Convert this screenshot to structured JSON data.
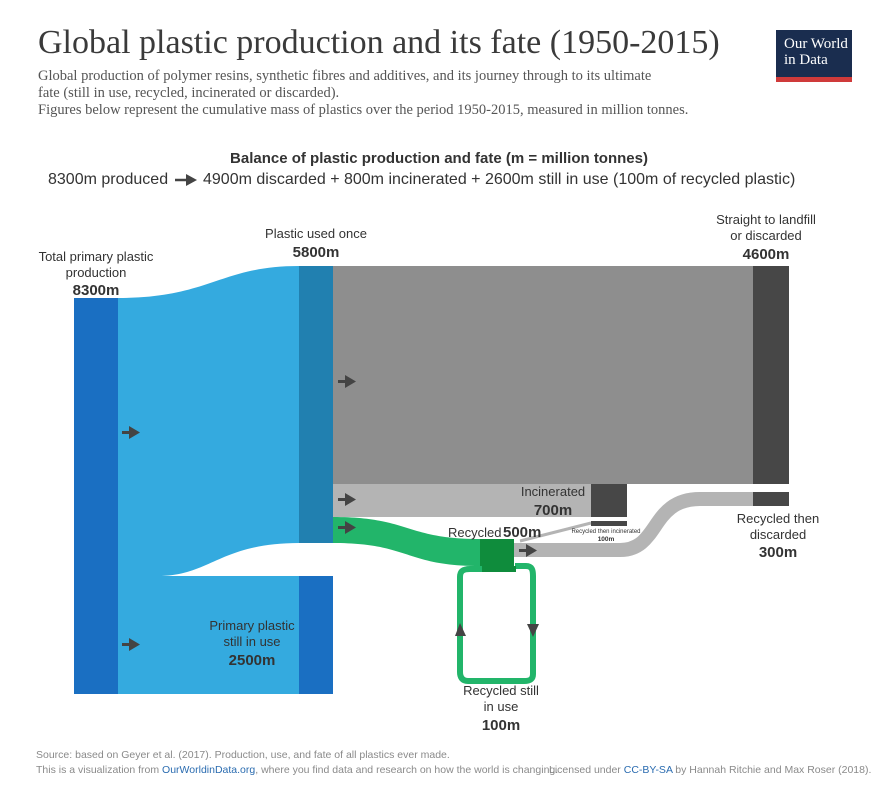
{
  "header": {
    "title": "Global plastic production and its fate (1950-2015)",
    "subtitle_lines": [
      "Global production of polymer resins, synthetic fibres and additives, and its journey through to its ultimate",
      "fate (still in use, recycled, incinerated or discarded).",
      "Figures below represent the cumulative mass of plastics over the period 1950-2015, measured in million tonnes."
    ]
  },
  "logo": {
    "line1": "Our World",
    "line2": "in Data"
  },
  "balance": {
    "title": "Balance of plastic production and fate (m = million tonnes)",
    "left": "8300m produced",
    "right": "4900m discarded + 800m incinerated + 2600m still in use (100m of recycled plastic)"
  },
  "nodes": {
    "total": {
      "label1": "Total primary plastic",
      "label2": "production",
      "value": "8300m"
    },
    "used_once": {
      "label": "Plastic used once",
      "value": "5800m"
    },
    "landfill": {
      "label1": "Straight to landfill",
      "label2": "or discarded",
      "value": "4600m"
    },
    "incinerated": {
      "label": "Incinerated",
      "value": "700m"
    },
    "recycled": {
      "label": "Recycled",
      "value": "500m"
    },
    "recycled_incinerated": {
      "label": "Recycled then incinerated",
      "value": "100m"
    },
    "recycled_discarded": {
      "label1": "Recycled then",
      "label2": "discarded",
      "value": "300m"
    },
    "recycled_in_use": {
      "label1": "Recycled still",
      "label2": "in use",
      "value": "100m"
    },
    "primary_in_use": {
      "label1": "Primary plastic",
      "label2": "still in use",
      "value": "2500m"
    }
  },
  "colors": {
    "blue_dark": "#1a6fc2",
    "blue_light": "#34aadf",
    "blue_node": "#2180b0",
    "grey_flow": "#8e8e8e",
    "grey_light": "#b4b4b4",
    "grey_node": "#474747",
    "green": "#22b56a",
    "green_dark": "#0f8c3c"
  },
  "footer": {
    "source": "Source: based on Geyer et al. (2017). Production, use, and fate of all plastics ever made.",
    "viz_prefix": "This is a visualization from ",
    "viz_link": "OurWorldinData.org",
    "viz_suffix": ", where you find data and research on how the world is changing.",
    "license_prefix": "Licensed under ",
    "license_link": "CC-BY-SA",
    "license_suffix": " by Hannah Ritchie and Max Roser (2018)."
  }
}
